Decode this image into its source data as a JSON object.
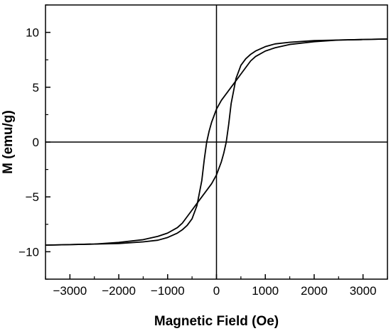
{
  "chart_data": {
    "type": "line",
    "title": "",
    "xlabel": "Magnetic Field (Oe)",
    "ylabel": "M (emu/g)",
    "xlim": [
      -3500,
      3500
    ],
    "ylim": [
      -12.5,
      12.5
    ],
    "x_ticks": [
      -3000,
      -2000,
      -1000,
      0,
      1000,
      2000,
      3000
    ],
    "x_tick_labels": [
      "−3000",
      "−2000",
      "−1000",
      "0",
      "1000",
      "2000",
      "3000"
    ],
    "y_ticks": [
      -10,
      -5,
      0,
      5,
      10
    ],
    "y_tick_labels": [
      "−10",
      "−5",
      "0",
      "5",
      "10"
    ],
    "zero_lines": true,
    "grid": false,
    "legend": "none",
    "line_color": "#000000",
    "series": [
      {
        "x": [
          3500,
          3000,
          2500,
          2000,
          1500,
          1200,
          1000,
          800,
          700,
          600,
          500,
          400,
          300,
          200,
          100,
          0,
          -100,
          -150,
          -200,
          -250,
          -300,
          -400,
          -500,
          -600,
          -700,
          -800,
          -1000,
          -1200,
          -1500,
          -2000,
          -2500,
          -3000,
          -3500
        ],
        "y": [
          9.4,
          9.35,
          9.3,
          9.15,
          8.9,
          8.6,
          8.3,
          7.8,
          7.4,
          6.8,
          6.2,
          5.6,
          5.0,
          4.4,
          3.8,
          3.0,
          1.8,
          1.0,
          0.0,
          -1.6,
          -3.5,
          -5.8,
          -7.0,
          -7.6,
          -8.0,
          -8.3,
          -8.7,
          -8.95,
          -9.1,
          -9.25,
          -9.3,
          -9.35,
          -9.4
        ]
      },
      {
        "x": [
          -3500,
          -3000,
          -2500,
          -2000,
          -1500,
          -1200,
          -1000,
          -800,
          -700,
          -600,
          -500,
          -400,
          -300,
          -200,
          -100,
          0,
          100,
          150,
          200,
          250,
          300,
          400,
          500,
          600,
          700,
          800,
          1000,
          1200,
          1500,
          2000,
          2500,
          3000,
          3500
        ],
        "y": [
          -9.4,
          -9.35,
          -9.3,
          -9.15,
          -8.9,
          -8.6,
          -8.3,
          -7.8,
          -7.4,
          -6.8,
          -6.2,
          -5.6,
          -5.0,
          -4.4,
          -3.8,
          -3.0,
          -1.8,
          -1.0,
          0.0,
          1.6,
          3.5,
          5.8,
          7.0,
          7.6,
          8.0,
          8.3,
          8.7,
          8.95,
          9.1,
          9.25,
          9.3,
          9.35,
          9.4
        ]
      }
    ]
  }
}
